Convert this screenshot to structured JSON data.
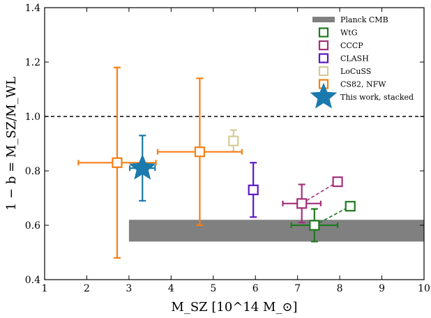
{
  "chart_data": {
    "type": "scatter",
    "title": "",
    "xlabel": "M_SZ [10^14 M_⊙]",
    "ylabel": "1 − b = M_SZ/M_WL",
    "xlim": [
      1,
      10
    ],
    "ylim": [
      0.4,
      1.4
    ],
    "xticks": [
      1,
      2,
      3,
      4,
      5,
      6,
      7,
      8,
      9,
      10
    ],
    "yticks": [
      0.4,
      0.6,
      0.8,
      1.0,
      1.2,
      1.4
    ],
    "xtick_labels": [
      "1",
      "2",
      "3",
      "4",
      "5",
      "6",
      "7",
      "8",
      "9",
      "10"
    ],
    "ytick_labels": [
      "0.4",
      "0.6",
      "0.8",
      "1.0",
      "1.2",
      "1.4"
    ],
    "grid": false,
    "legend_position": "top-right",
    "reference_line": {
      "y": 1.0,
      "style": "dashed",
      "color": "#000000"
    },
    "planck_band": {
      "label": "Planck CMB",
      "x": [
        3.0,
        10.0
      ],
      "y": [
        0.54,
        0.62
      ],
      "color": "#808080"
    },
    "series": [
      {
        "name": "WtG",
        "marker": "square-open",
        "color": "#1f7a1f",
        "points": [
          {
            "x": 7.4,
            "y": 0.6,
            "xerr": [
              0.55,
              0.55
            ],
            "yerr": [
              0.06,
              0.06
            ]
          }
        ],
        "shifted_point": {
          "x": 8.25,
          "y": 0.67
        }
      },
      {
        "name": "CCCP",
        "marker": "square-open",
        "color": "#a3307a",
        "points": [
          {
            "x": 7.1,
            "y": 0.68,
            "xerr": [
              0.45,
              0.45
            ],
            "yerr": [
              0.07,
              0.07
            ]
          }
        ],
        "shifted_point": {
          "x": 7.95,
          "y": 0.76
        }
      },
      {
        "name": "CLASH",
        "marker": "square-open",
        "color": "#5b17c4",
        "points": [
          {
            "x": 5.95,
            "y": 0.73,
            "xerr": [
              0,
              0
            ],
            "yerr": [
              0.1,
              0.1
            ]
          }
        ]
      },
      {
        "name": "LoCuSS",
        "marker": "square-open",
        "color": "#d4cc96",
        "points": [
          {
            "x": 5.48,
            "y": 0.91,
            "xerr": [
              0,
              0
            ],
            "yerr": [
              0.04,
              0.04
            ]
          }
        ]
      },
      {
        "name": "CS82, NFW",
        "marker": "square-open",
        "color": "#f57f17",
        "points": [
          {
            "x": 2.72,
            "y": 0.83,
            "xerr": [
              0.92,
              0.92
            ],
            "yerr": [
              0.35,
              0.35
            ]
          },
          {
            "x": 4.68,
            "y": 0.87,
            "xerr": [
              1.0,
              1.0
            ],
            "yerr": [
              0.27,
              0.27
            ]
          }
        ]
      },
      {
        "name": "This work, stacked",
        "marker": "star",
        "color": "#1a7aad",
        "points": [
          {
            "x": 3.32,
            "y": 0.81,
            "xerr": [
              0.3,
              0.3
            ],
            "yerr": [
              0.12,
              0.12
            ]
          }
        ]
      }
    ]
  }
}
